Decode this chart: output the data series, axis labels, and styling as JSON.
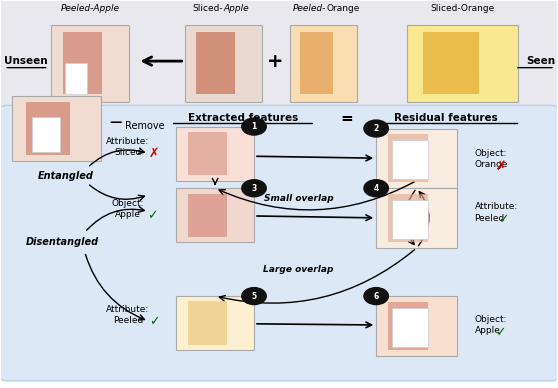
{
  "fig_width": 5.58,
  "fig_height": 3.88,
  "bg_color": "#ffffff",
  "top_panel_bg": "#e8e8ee",
  "bottom_panel_bg": "#dce8f5",
  "unseen_label": "Unseen",
  "seen_label": "Seen",
  "remove_label": "Remove",
  "extracted_label": "Extracted features",
  "residual_label": "Residual features",
  "entangled_label": "Entangled",
  "disentangled_label": "Disentangled",
  "small_overlap_label": "Small overlap",
  "large_overlap_label": "Large overlap",
  "plus_label": "+"
}
